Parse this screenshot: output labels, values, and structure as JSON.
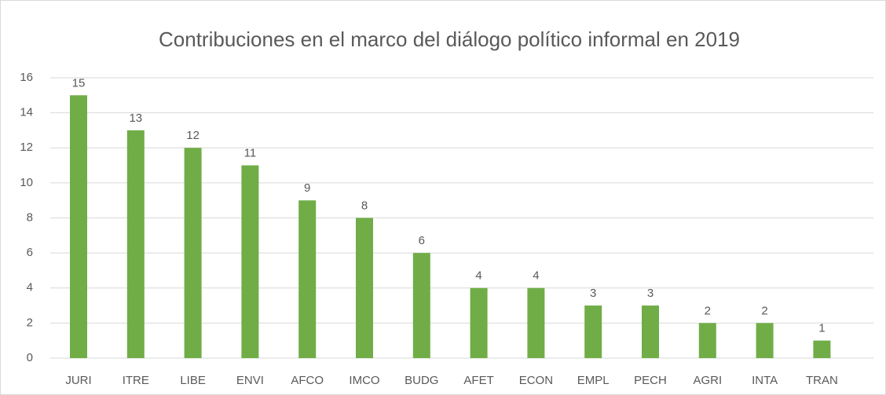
{
  "chart_data": {
    "type": "bar",
    "title": "Contribuciones  en el marco del diálogo político informal en 2019",
    "categories": [
      "JURI",
      "ITRE",
      "LIBE",
      "ENVI",
      "AFCO",
      "IMCO",
      "BUDG",
      "AFET",
      "ECON",
      "EMPL",
      "PECH",
      "AGRI",
      "INTA",
      "TRAN"
    ],
    "values": [
      15,
      13,
      12,
      11,
      9,
      8,
      6,
      4,
      4,
      3,
      3,
      2,
      2,
      1
    ],
    "color": "#70ad47",
    "ylim": [
      0,
      16
    ],
    "yticks": [
      0,
      2,
      4,
      6,
      8,
      10,
      12,
      14,
      16
    ],
    "grid": true
  }
}
